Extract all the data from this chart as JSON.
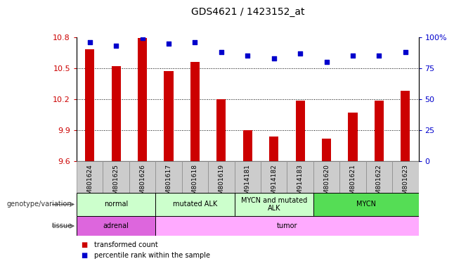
{
  "title": "GDS4621 / 1423152_at",
  "samples": [
    "GSM801624",
    "GSM801625",
    "GSM801626",
    "GSM801617",
    "GSM801618",
    "GSM801619",
    "GSM914181",
    "GSM914182",
    "GSM914183",
    "GSM801620",
    "GSM801621",
    "GSM801622",
    "GSM801623"
  ],
  "transformed_count": [
    10.68,
    10.52,
    10.79,
    10.47,
    10.56,
    10.2,
    9.9,
    9.84,
    10.19,
    9.82,
    10.07,
    10.19,
    10.28
  ],
  "percentile_rank": [
    96,
    93,
    99,
    95,
    96,
    88,
    85,
    83,
    87,
    80,
    85,
    85,
    88
  ],
  "ylim_left": [
    9.6,
    10.8
  ],
  "ylim_right": [
    0,
    100
  ],
  "yticks_left": [
    9.6,
    9.9,
    10.2,
    10.5,
    10.8
  ],
  "yticks_right": [
    0,
    25,
    50,
    75,
    100
  ],
  "bar_color": "#cc0000",
  "dot_color": "#0000cc",
  "bar_width": 0.35,
  "genotype_groups": [
    {
      "label": "normal",
      "start": 0,
      "end": 3,
      "color": "#ccffcc"
    },
    {
      "label": "mutated ALK",
      "start": 3,
      "end": 6,
      "color": "#ccffcc"
    },
    {
      "label": "MYCN and mutated\nALK",
      "start": 6,
      "end": 9,
      "color": "#ccffcc"
    },
    {
      "label": "MYCN",
      "start": 9,
      "end": 13,
      "color": "#55dd55"
    }
  ],
  "tissue_groups": [
    {
      "label": "adrenal",
      "start": 0,
      "end": 3,
      "color": "#dd66dd"
    },
    {
      "label": "tumor",
      "start": 3,
      "end": 13,
      "color": "#ffaaff"
    }
  ],
  "tick_bg_color": "#cccccc",
  "tick_border_color": "#888888",
  "legend_items": [
    {
      "label": "transformed count",
      "color": "#cc0000"
    },
    {
      "label": "percentile rank within the sample",
      "color": "#0000cc"
    }
  ],
  "left_label_color": "#333333",
  "left_arrow_color": "#555555"
}
